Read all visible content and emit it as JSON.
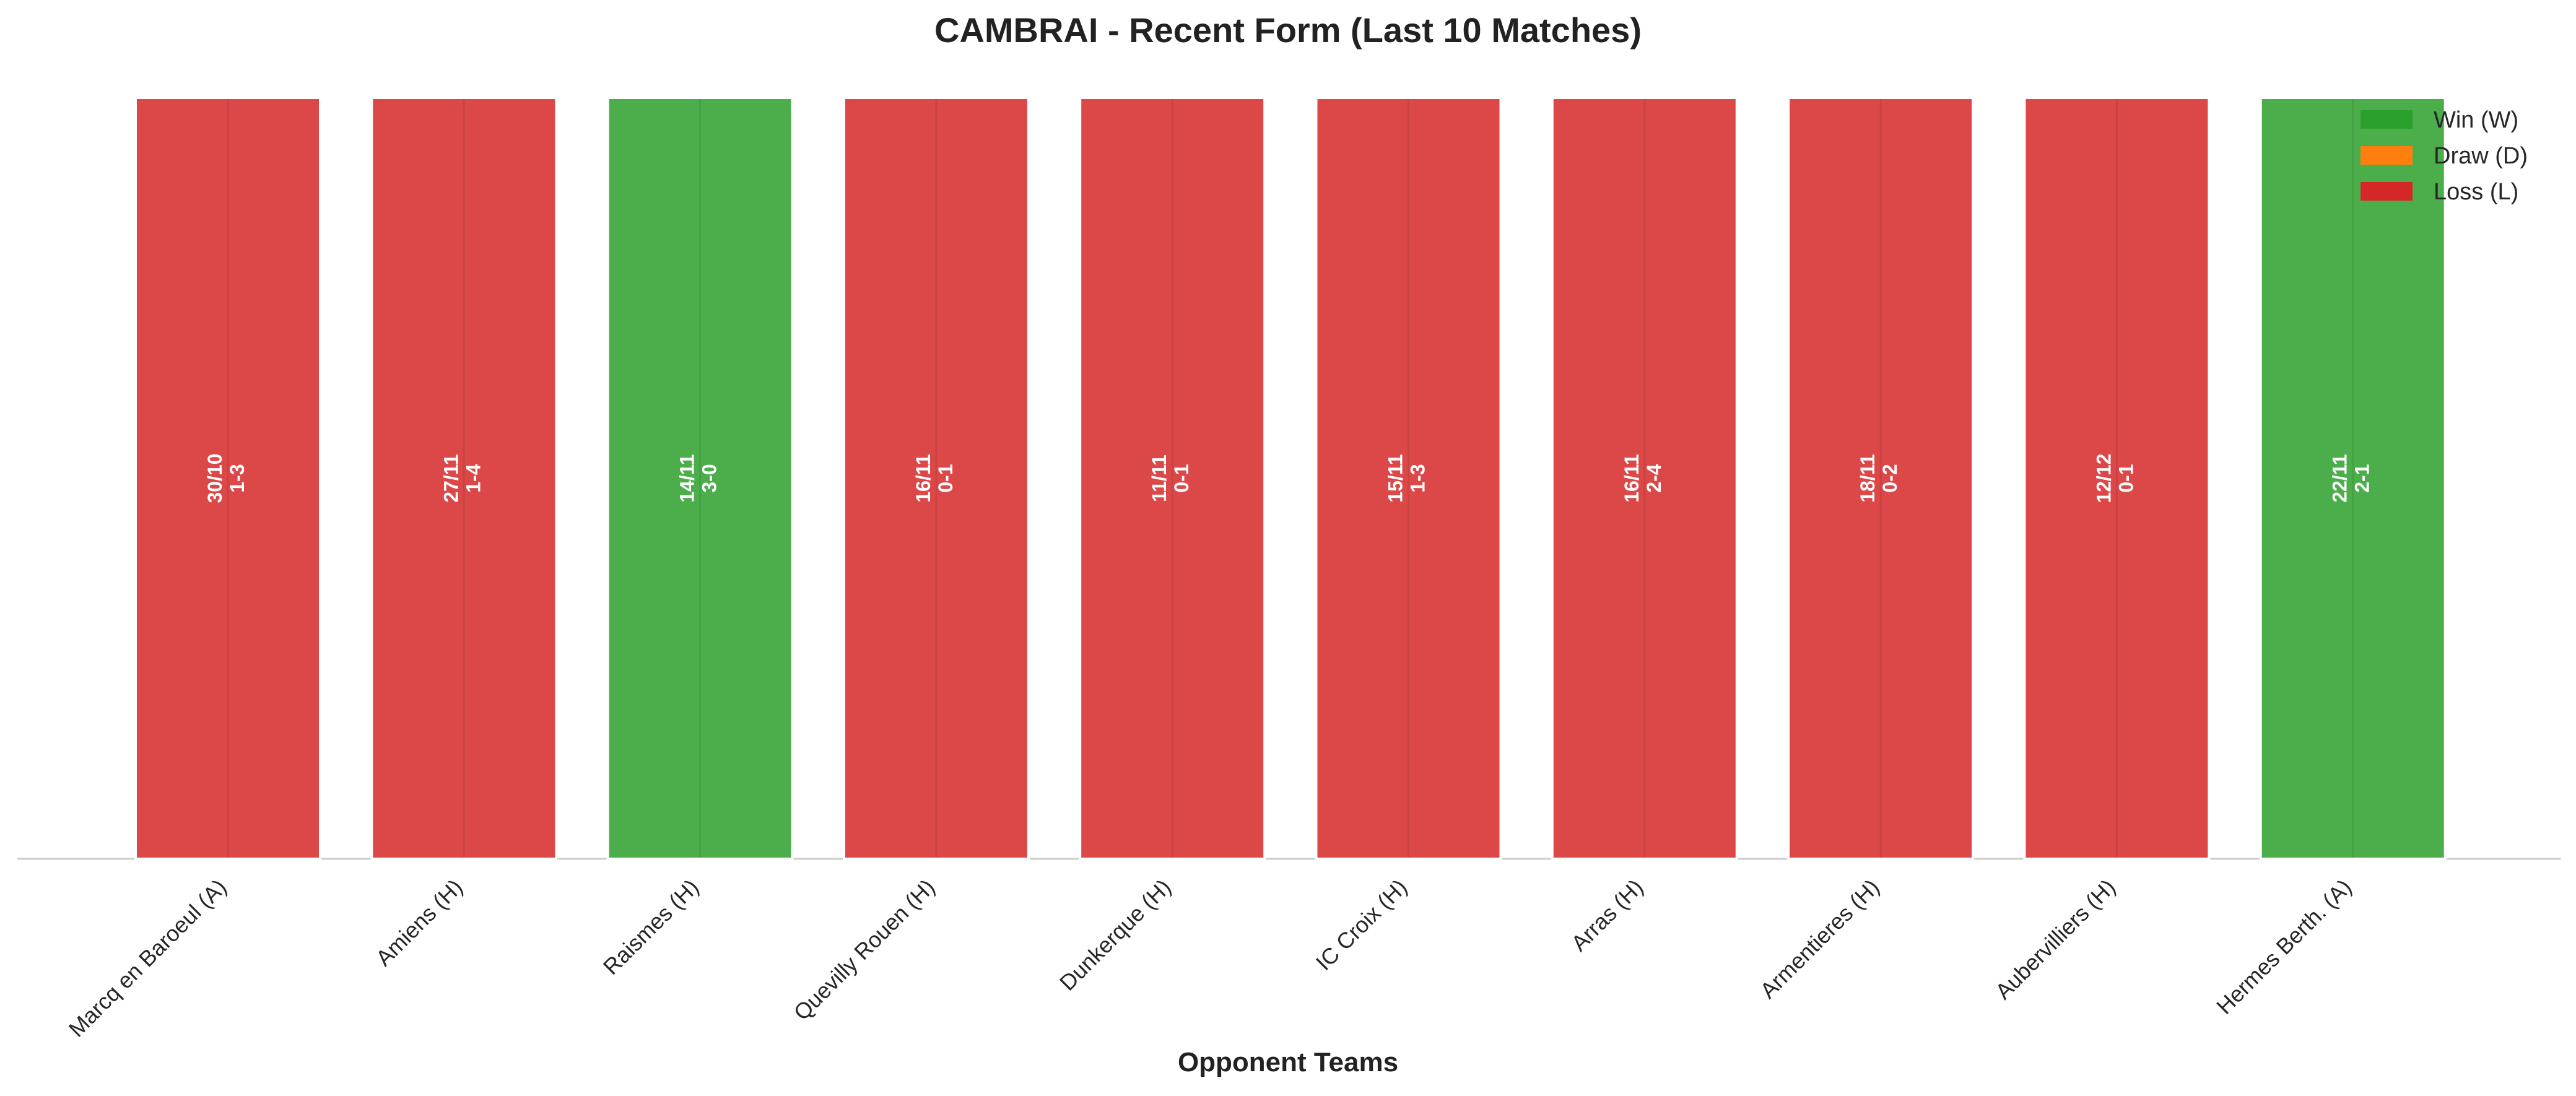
{
  "chart_data": {
    "type": "bar",
    "title": "CAMBRAI - Recent Form (Last 10 Matches)",
    "xlabel": "Opponent Teams",
    "ylabel": "",
    "ylim": [
      0,
      1
    ],
    "grid": false,
    "legend_placement": "top-right",
    "categories": [
      "Marcq en Baroeul (A)",
      "Amiens (H)",
      "Raismes (H)",
      "Quevilly Rouen (H)",
      "Dunkerque (H)",
      "IC Croix (H)",
      "Arras (H)",
      "Armentieres (H)",
      "Aubervilliers (H)",
      "Hermes Berth. (A)"
    ],
    "values": [
      1,
      1,
      1,
      1,
      1,
      1,
      1,
      1,
      1,
      1
    ],
    "results": [
      "L",
      "L",
      "W",
      "L",
      "L",
      "L",
      "L",
      "L",
      "L",
      "W"
    ],
    "dates": [
      "30/10",
      "27/11",
      "14/11",
      "16/11",
      "11/11",
      "15/11",
      "16/11",
      "18/11",
      "12/12",
      "22/11"
    ],
    "scores": [
      "1-3",
      "1-4",
      "3-0",
      "0-1",
      "0-1",
      "1-3",
      "2-4",
      "0-2",
      "0-1",
      "2-1"
    ],
    "legend": [
      {
        "key": "W",
        "label": "Win (W)"
      },
      {
        "key": "D",
        "label": "Draw (D)"
      },
      {
        "key": "L",
        "label": "Loss (L)"
      }
    ],
    "colors": {
      "W": "#2ca02c",
      "D": "#ff7f0e",
      "L": "#d62728"
    }
  }
}
